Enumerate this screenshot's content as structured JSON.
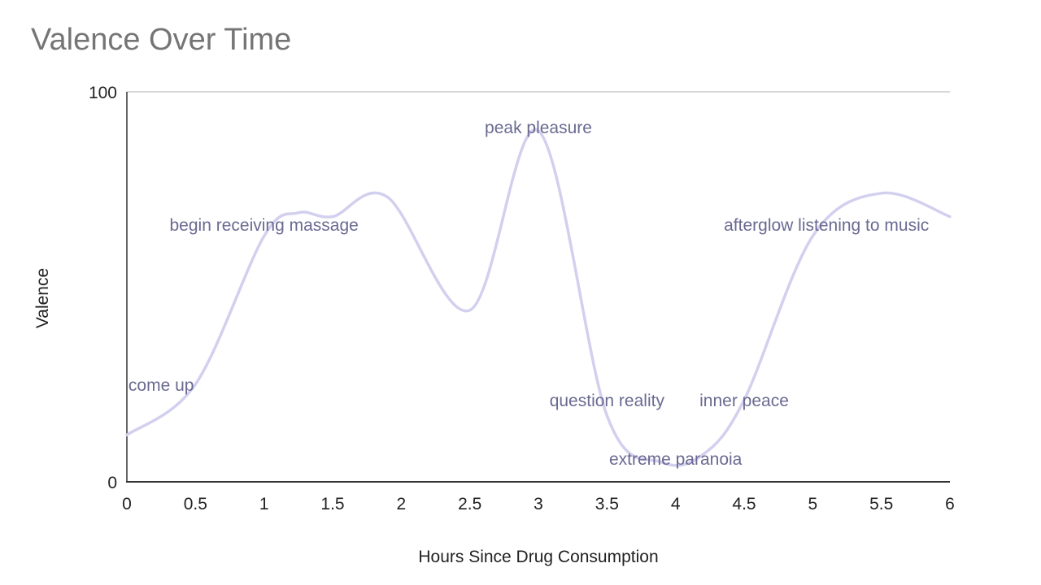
{
  "chart_data": {
    "type": "line",
    "title": "Valence Over Time",
    "xlabel": "Hours Since Drug Consumption",
    "ylabel": "Valence",
    "xlim": [
      0,
      6
    ],
    "ylim": [
      0,
      100
    ],
    "x_ticks": [
      "0",
      "0.5",
      "1",
      "1.5",
      "2",
      "2.5",
      "3",
      "3.5",
      "4",
      "4.5",
      "5",
      "5.5",
      "6"
    ],
    "y_ticks": [
      "0",
      "100"
    ],
    "grid": "top line only",
    "legend": "none",
    "line_color": "#d2d0ee",
    "annotation_color": "#6a6a92",
    "series": [
      {
        "x": [
          0,
          0.5,
          1,
          1.25,
          1.5,
          1.9,
          2.5,
          3,
          3.5,
          3.9,
          4.2,
          4.5,
          5,
          5.5,
          6
        ],
        "values": [
          12,
          25,
          63,
          69,
          68,
          73,
          44,
          90,
          17,
          5,
          7,
          21,
          63,
          74,
          68
        ]
      }
    ],
    "annotations": [
      {
        "text": "come up",
        "x": 0.25,
        "y": 25
      },
      {
        "text": "begin receiving massage",
        "x": 1.0,
        "y": 66
      },
      {
        "text": "peak pleasure",
        "x": 3.0,
        "y": 91
      },
      {
        "text": "question reality",
        "x": 3.5,
        "y": 21
      },
      {
        "text": "extreme paranoia",
        "x": 4.0,
        "y": 6
      },
      {
        "text": "inner peace",
        "x": 4.5,
        "y": 21
      },
      {
        "text": "afterglow listening to music",
        "x": 5.1,
        "y": 66
      }
    ]
  }
}
